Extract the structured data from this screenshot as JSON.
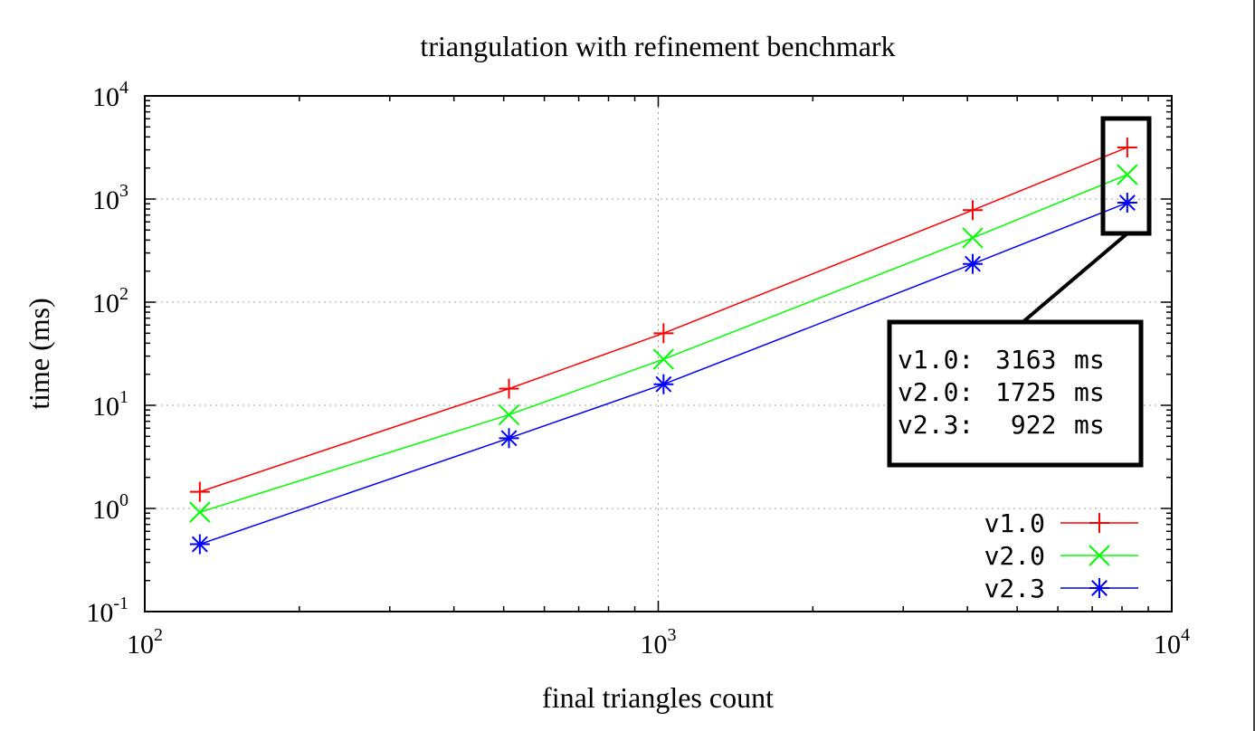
{
  "chart_data": {
    "type": "line",
    "title": "triangulation with refinement benchmark",
    "xlabel": "final triangles count",
    "ylabel": "time (ms)",
    "x_scale": "log",
    "y_scale": "log",
    "xlim": [
      100,
      10000
    ],
    "ylim": [
      0.1,
      10000
    ],
    "grid": true,
    "legend_position": "bottom-right",
    "x_ticks": [
      {
        "base": "10",
        "exp": "2",
        "value": 100
      },
      {
        "base": "10",
        "exp": "3",
        "value": 1000
      },
      {
        "base": "10",
        "exp": "4",
        "value": 10000
      }
    ],
    "y_ticks": [
      {
        "base": "10",
        "exp": "-1",
        "value": 0.1
      },
      {
        "base": "10",
        "exp": "0",
        "value": 1
      },
      {
        "base": "10",
        "exp": "1",
        "value": 10
      },
      {
        "base": "10",
        "exp": "2",
        "value": 100
      },
      {
        "base": "10",
        "exp": "3",
        "value": 1000
      },
      {
        "base": "10",
        "exp": "4",
        "value": 10000
      }
    ],
    "x": [
      128,
      512,
      1024,
      4096,
      8192
    ],
    "series": [
      {
        "name": "v1.0",
        "color": "#ff0000",
        "marker": "plus",
        "values": [
          1.45,
          14.5,
          50,
          780,
          3163
        ]
      },
      {
        "name": "v2.0",
        "color": "#00ff00",
        "marker": "cross",
        "values": [
          0.92,
          8.1,
          28,
          420,
          1725
        ]
      },
      {
        "name": "v2.3",
        "color": "#0000ff",
        "marker": "star",
        "values": [
          0.45,
          4.8,
          16,
          235,
          922
        ]
      }
    ],
    "annotation": {
      "lines": [
        {
          "version": "v1.0:",
          "time": "3163",
          "unit": "ms"
        },
        {
          "version": "v2.0:",
          "time": "1725",
          "unit": "ms"
        },
        {
          "version": "v2.3:",
          "time": " 922",
          "unit": "ms"
        }
      ]
    }
  }
}
